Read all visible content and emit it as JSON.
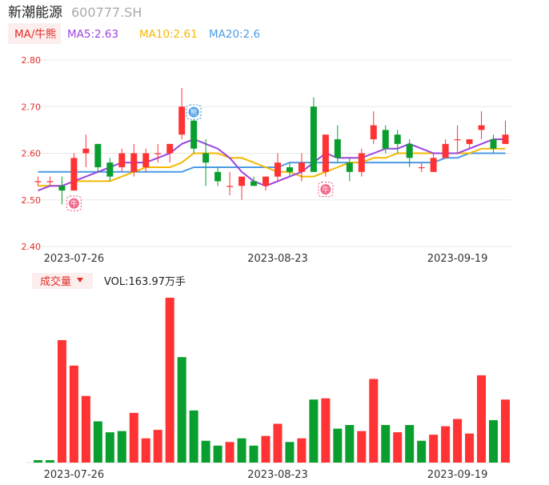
{
  "header": {
    "stock_name": "新潮能源",
    "stock_code": "600777.SH"
  },
  "indicators": {
    "ma_button": "MA/牛熊",
    "ma5": "MA5:2.63",
    "ma10": "MA10:2.61",
    "ma20": "MA20:2.6"
  },
  "volume_header": {
    "button": "成交量",
    "vol_text": "VOL:163.97万手"
  },
  "colors": {
    "up": "#ff3333",
    "down": "#0a9e2e",
    "ma5": "#9b44e0",
    "ma10": "#f5b800",
    "ma20": "#4c9be6",
    "bull_bear": "#4c9be6",
    "axis_text": "#e0302a",
    "grid": "#e8e8e8"
  },
  "chart_data": [
    {
      "type": "candlestick",
      "y_ticks": [
        "2.80",
        "2.70",
        "2.60",
        "2.50",
        "2.40"
      ],
      "ylim": [
        2.4,
        2.8
      ],
      "x_tick_labels": [
        {
          "index": 3,
          "label": "2023-07-26"
        },
        {
          "index": 20,
          "label": "2023-08-23"
        },
        {
          "index": 35,
          "label": "2023-09-19"
        }
      ],
      "candles": [
        {
          "o": 2.54,
          "h": 2.55,
          "l": 2.53,
          "c": 2.54
        },
        {
          "o": 2.54,
          "h": 2.55,
          "l": 2.53,
          "c": 2.54
        },
        {
          "o": 2.53,
          "h": 2.55,
          "l": 2.49,
          "c": 2.52
        },
        {
          "o": 2.52,
          "h": 2.6,
          "l": 2.52,
          "c": 2.59
        },
        {
          "o": 2.6,
          "h": 2.64,
          "l": 2.57,
          "c": 2.61
        },
        {
          "o": 2.62,
          "h": 2.62,
          "l": 2.56,
          "c": 2.57
        },
        {
          "o": 2.58,
          "h": 2.59,
          "l": 2.54,
          "c": 2.55
        },
        {
          "o": 2.57,
          "h": 2.61,
          "l": 2.56,
          "c": 2.6
        },
        {
          "o": 2.56,
          "h": 2.62,
          "l": 2.55,
          "c": 2.6
        },
        {
          "o": 2.57,
          "h": 2.61,
          "l": 2.56,
          "c": 2.6
        },
        {
          "o": 2.6,
          "h": 2.62,
          "l": 2.58,
          "c": 2.6
        },
        {
          "o": 2.6,
          "h": 2.62,
          "l": 2.58,
          "c": 2.62
        },
        {
          "o": 2.64,
          "h": 2.74,
          "l": 2.63,
          "c": 2.7
        },
        {
          "o": 2.67,
          "h": 2.69,
          "l": 2.6,
          "c": 2.61
        },
        {
          "o": 2.6,
          "h": 2.63,
          "l": 2.53,
          "c": 2.58
        },
        {
          "o": 2.56,
          "h": 2.57,
          "l": 2.53,
          "c": 2.54
        },
        {
          "o": 2.53,
          "h": 2.56,
          "l": 2.51,
          "c": 2.53
        },
        {
          "o": 2.53,
          "h": 2.55,
          "l": 2.5,
          "c": 2.55
        },
        {
          "o": 2.54,
          "h": 2.55,
          "l": 2.53,
          "c": 2.53
        },
        {
          "o": 2.53,
          "h": 2.55,
          "l": 2.52,
          "c": 2.55
        },
        {
          "o": 2.55,
          "h": 2.6,
          "l": 2.54,
          "c": 2.58
        },
        {
          "o": 2.57,
          "h": 2.58,
          "l": 2.55,
          "c": 2.56
        },
        {
          "o": 2.56,
          "h": 2.6,
          "l": 2.54,
          "c": 2.58
        },
        {
          "o": 2.7,
          "h": 2.72,
          "l": 2.56,
          "c": 2.56
        },
        {
          "o": 2.56,
          "h": 2.64,
          "l": 2.55,
          "c": 2.64
        },
        {
          "o": 2.63,
          "h": 2.66,
          "l": 2.58,
          "c": 2.59
        },
        {
          "o": 2.58,
          "h": 2.59,
          "l": 2.54,
          "c": 2.56
        },
        {
          "o": 2.56,
          "h": 2.61,
          "l": 2.55,
          "c": 2.6
        },
        {
          "o": 2.63,
          "h": 2.69,
          "l": 2.62,
          "c": 2.66
        },
        {
          "o": 2.65,
          "h": 2.66,
          "l": 2.6,
          "c": 2.61
        },
        {
          "o": 2.64,
          "h": 2.65,
          "l": 2.6,
          "c": 2.62
        },
        {
          "o": 2.62,
          "h": 2.63,
          "l": 2.57,
          "c": 2.59
        },
        {
          "o": 2.57,
          "h": 2.58,
          "l": 2.56,
          "c": 2.57
        },
        {
          "o": 2.56,
          "h": 2.6,
          "l": 2.56,
          "c": 2.59
        },
        {
          "o": 2.59,
          "h": 2.63,
          "l": 2.59,
          "c": 2.62
        },
        {
          "o": 2.63,
          "h": 2.66,
          "l": 2.6,
          "c": 2.63
        },
        {
          "o": 2.62,
          "h": 2.63,
          "l": 2.61,
          "c": 2.63
        },
        {
          "o": 2.65,
          "h": 2.69,
          "l": 2.63,
          "c": 2.66
        },
        {
          "o": 2.63,
          "h": 2.64,
          "l": 2.6,
          "c": 2.61
        },
        {
          "o": 2.62,
          "h": 2.67,
          "l": 2.62,
          "c": 2.64
        }
      ],
      "ma5": [
        2.52,
        2.53,
        2.53,
        2.54,
        2.55,
        2.56,
        2.57,
        2.58,
        2.58,
        2.58,
        2.59,
        2.6,
        2.62,
        2.63,
        2.62,
        2.61,
        2.59,
        2.56,
        2.54,
        2.53,
        2.54,
        2.55,
        2.56,
        2.58,
        2.6,
        2.59,
        2.59,
        2.59,
        2.6,
        2.61,
        2.61,
        2.62,
        2.61,
        2.6,
        2.6,
        2.6,
        2.61,
        2.62,
        2.63,
        2.63
      ],
      "ma10": [
        2.53,
        2.53,
        2.53,
        2.54,
        2.54,
        2.54,
        2.54,
        2.55,
        2.56,
        2.57,
        2.57,
        2.57,
        2.58,
        2.6,
        2.6,
        2.6,
        2.59,
        2.59,
        2.58,
        2.57,
        2.56,
        2.56,
        2.55,
        2.55,
        2.56,
        2.57,
        2.58,
        2.58,
        2.59,
        2.59,
        2.6,
        2.6,
        2.6,
        2.6,
        2.6,
        2.6,
        2.6,
        2.61,
        2.61,
        2.61
      ],
      "ma20": [
        2.56,
        2.56,
        2.56,
        2.56,
        2.56,
        2.56,
        2.56,
        2.56,
        2.56,
        2.56,
        2.56,
        2.56,
        2.56,
        2.57,
        2.57,
        2.57,
        2.57,
        2.57,
        2.57,
        2.57,
        2.57,
        2.58,
        2.58,
        2.58,
        2.58,
        2.58,
        2.58,
        2.58,
        2.58,
        2.58,
        2.58,
        2.58,
        2.58,
        2.58,
        2.59,
        2.59,
        2.6,
        2.6,
        2.6,
        2.6
      ],
      "bull_bear_markers": [
        {
          "index": 3,
          "label": "牛",
          "type": "bull"
        },
        {
          "index": 13,
          "label": "熊",
          "type": "bear"
        },
        {
          "index": 24,
          "label": "牛",
          "type": "bull"
        }
      ]
    },
    {
      "type": "bar",
      "name": "volume",
      "x_tick_labels": [
        {
          "index": 3,
          "label": "2023-07-26"
        },
        {
          "index": 20,
          "label": "2023-08-23"
        },
        {
          "index": 35,
          "label": "2023-09-19"
        }
      ],
      "values": [
        2,
        2,
        101,
        80,
        55,
        34,
        25,
        26,
        41,
        20,
        27,
        136,
        87,
        43,
        18,
        14,
        17,
        20,
        14,
        22,
        32,
        17,
        20,
        52,
        53,
        28,
        31,
        26,
        69,
        31,
        25,
        31,
        18,
        23,
        30,
        36,
        24,
        72,
        35,
        52
      ],
      "direction": [
        "down",
        "down",
        "up",
        "up",
        "up",
        "down",
        "down",
        "down",
        "up",
        "up",
        "up",
        "up",
        "down",
        "down",
        "down",
        "down",
        "up",
        "down",
        "down",
        "up",
        "up",
        "down",
        "up",
        "down",
        "up",
        "down",
        "down",
        "up",
        "up",
        "down",
        "up",
        "down",
        "down",
        "up",
        "up",
        "up",
        "up",
        "up",
        "down",
        "up"
      ]
    }
  ]
}
